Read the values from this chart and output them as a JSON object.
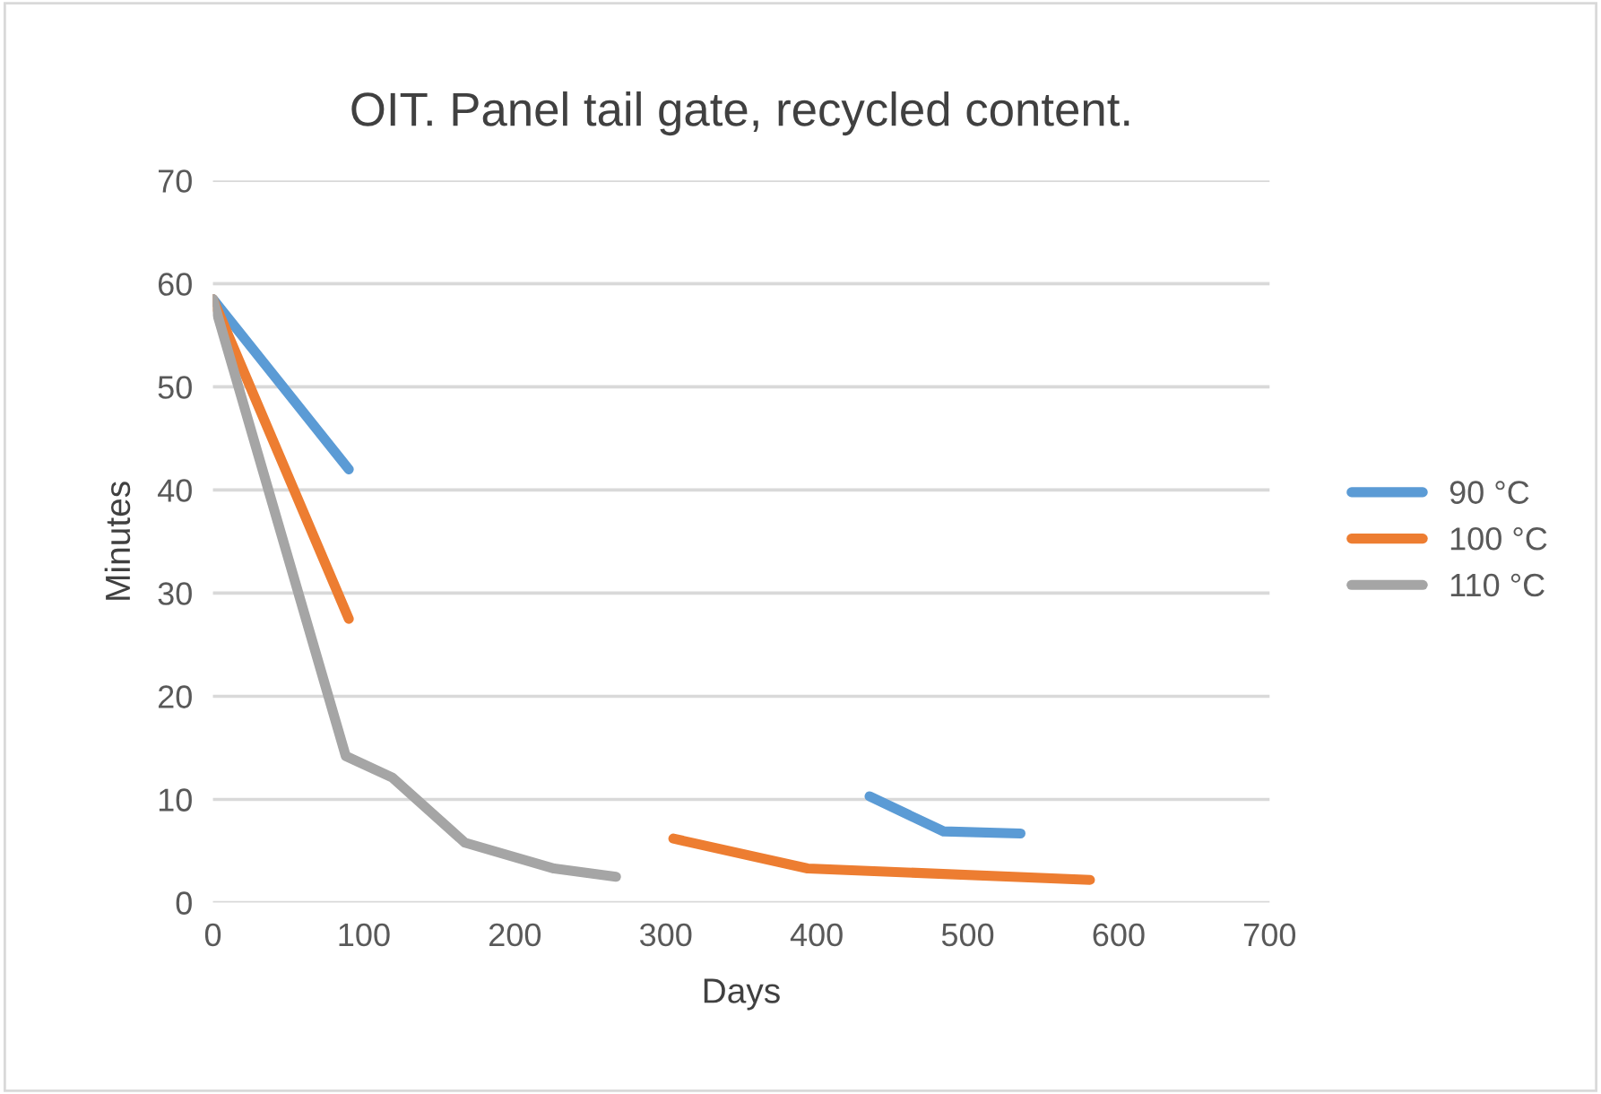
{
  "chart_data": {
    "type": "line",
    "title": "OIT. Panel tail gate, recycled content.",
    "xlabel": "Days",
    "ylabel": "Minutes",
    "xlim": [
      0,
      700
    ],
    "xticks": [
      0,
      100,
      200,
      300,
      400,
      500,
      600,
      700
    ],
    "ylim": [
      0,
      70
    ],
    "yticks": [
      0,
      10,
      20,
      30,
      40,
      50,
      60,
      70
    ],
    "grid": "y",
    "legend": "right",
    "marker": "none",
    "line_style": "solid",
    "series": [
      {
        "name": "90 °C",
        "color": "#5b9bd5",
        "x": [
          0,
          90,
          260,
          435,
          484,
          535
        ],
        "values": [
          58.5,
          42,
          null,
          10.3,
          6.9,
          6.7
        ]
      },
      {
        "name": "100 °C",
        "color": "#ed7d31",
        "x": [
          0,
          90,
          200,
          305,
          394,
          581
        ],
        "values": [
          58.5,
          27.5,
          null,
          6.2,
          3.3,
          2.2
        ]
      },
      {
        "name": "110 °C",
        "color": "#a5a5a5",
        "x": [
          0,
          88,
          119,
          167,
          226,
          267
        ],
        "values": [
          58.5,
          14.2,
          12.1,
          5.8,
          3.3,
          2.5
        ]
      }
    ]
  }
}
